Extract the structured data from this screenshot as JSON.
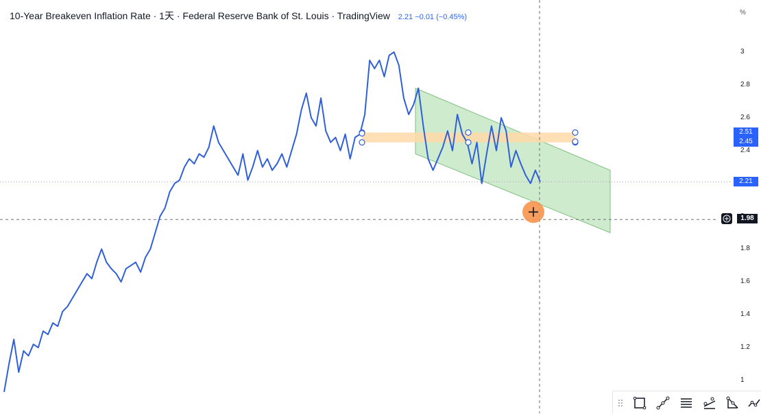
{
  "header": {
    "title": "10-Year Breakeven Inflation Rate · 1天 · Federal Reserve Bank of St. Louis · TradingView",
    "quote": "2.21  −0.01 (−0.45%)"
  },
  "colors": {
    "series_line": "#2f5fd8",
    "channel_fill": "#b9e3b9",
    "channel_stroke": "#7fbf7f",
    "highlight_band": "#ffd9a8",
    "crosshair_marker": "#f7934c",
    "price_tag_blue": "#2962ff"
  },
  "axis": {
    "unit": "%",
    "ticks": [
      "3",
      "2.8",
      "2.6",
      "2.4",
      "2.2",
      "2",
      "1.8",
      "1.6",
      "1.4",
      "1.2",
      "1"
    ]
  },
  "price_tags": {
    "upper_a": "2.51",
    "upper_b": "2.45",
    "last": "2.21",
    "crosshair": "1.98"
  },
  "toolbar": {
    "tools": [
      "rectangle-tool-icon",
      "path-tool-icon",
      "fib-retracement-icon",
      "parallel-lines-icon",
      "triangle-pattern-icon",
      "more-tools-icon"
    ]
  },
  "chart_data": {
    "type": "line",
    "title": "10-Year Breakeven Inflation Rate",
    "ylabel": "%",
    "ylim": [
      1,
      3.05
    ],
    "y_ticks": [
      1,
      1.2,
      1.4,
      1.6,
      1.8,
      2,
      2.2,
      2.4,
      2.6,
      2.8,
      3
    ],
    "series": [
      {
        "values": [
          0.93,
          1.1,
          1.25,
          1.05,
          1.18,
          1.15,
          1.22,
          1.2,
          1.3,
          1.28,
          1.35,
          1.33,
          1.42,
          1.45,
          1.5,
          1.55,
          1.6,
          1.65,
          1.62,
          1.72,
          1.8,
          1.72,
          1.68,
          1.65,
          1.6,
          1.68,
          1.7,
          1.72,
          1.66,
          1.75,
          1.8,
          1.9,
          2.0,
          2.05,
          2.15,
          2.2,
          2.22,
          2.3,
          2.35,
          2.32,
          2.38,
          2.36,
          2.42,
          2.55,
          2.45,
          2.4,
          2.35,
          2.3,
          2.25,
          2.38,
          2.22,
          2.3,
          2.4,
          2.3,
          2.35,
          2.28,
          2.32,
          2.38,
          2.3,
          2.4,
          2.5,
          2.65,
          2.75,
          2.6,
          2.55,
          2.72,
          2.52,
          2.45,
          2.48,
          2.4,
          2.5,
          2.35,
          2.48,
          2.5,
          2.62,
          2.95,
          2.9,
          2.95,
          2.85,
          2.98,
          3.0,
          2.92,
          2.72,
          2.62,
          2.68,
          2.78,
          2.55,
          2.35,
          2.28,
          2.35,
          2.42,
          2.52,
          2.4,
          2.62,
          2.5,
          2.45,
          2.32,
          2.45,
          2.2,
          2.38,
          2.55,
          2.4,
          2.6,
          2.52,
          2.3,
          2.4,
          2.32,
          2.25,
          2.2,
          2.28,
          2.21
        ]
      }
    ],
    "annotations": {
      "horizontal_band": [
        2.45,
        2.51
      ],
      "descending_channel_upper": [
        2.78,
        2.28
      ],
      "descending_channel_lower": [
        2.38,
        1.9
      ],
      "crosshair_price": 1.98,
      "last_price": 2.21
    },
    "grid": false
  }
}
